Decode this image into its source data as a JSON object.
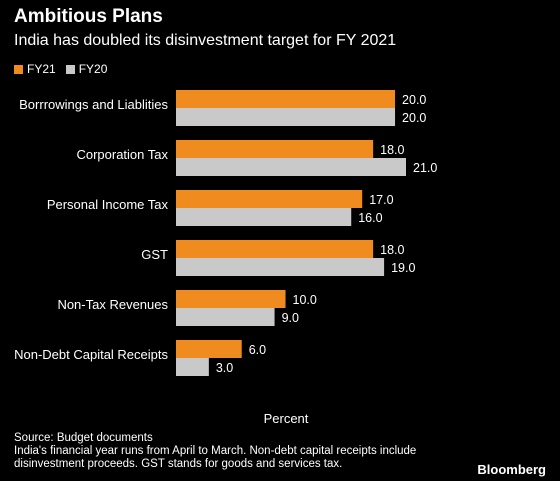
{
  "chart_data": {
    "type": "bar",
    "orientation": "horizontal",
    "title": "Ambitious Plans",
    "subtitle": "India has doubled its disinvestment target for FY 2021",
    "xlabel": "Percent",
    "categories": [
      "Borrrowings and Liablities",
      "Corporation Tax",
      "Personal Income Tax",
      "GST",
      "Non-Tax Revenues",
      "Non-Debt Capital Receipts"
    ],
    "series": [
      {
        "name": "FY21",
        "color": "#f08c1f",
        "values": [
          20.0,
          18.0,
          17.0,
          18.0,
          10.0,
          6.0
        ]
      },
      {
        "name": "FY20",
        "color": "#c9c9c9",
        "values": [
          20.0,
          21.0,
          16.0,
          19.0,
          9.0,
          3.0
        ]
      }
    ],
    "xlim": [
      0,
      21
    ],
    "grid": false,
    "legend": "top-left",
    "value_format": "1 decimal"
  },
  "source": "Source: Budget documents",
  "note": "India's financial year runs from April to March. Non-debt capital receipts include disinvestment proceeds. GST stands for goods and services tax.",
  "brand": "Bloomberg"
}
